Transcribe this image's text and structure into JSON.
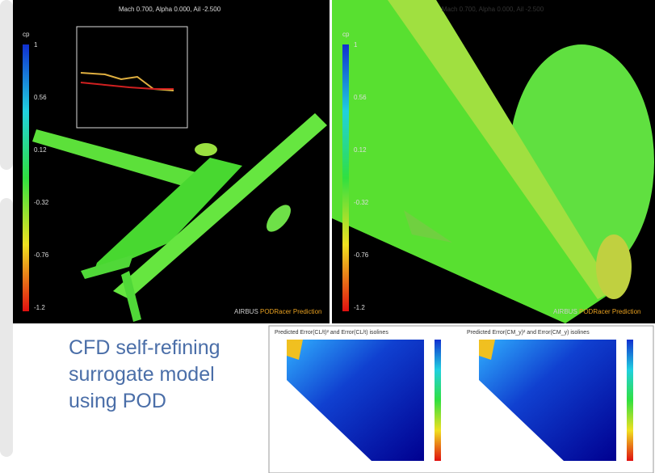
{
  "panels": [
    {
      "title": "Mach 0.700, Alpha 0.000, Ail -2.500",
      "colorbar": {
        "label": "cp",
        "ticks": [
          "1",
          "0.56",
          "0.12",
          "-0.32",
          "-0.76",
          "-1.2"
        ]
      },
      "footer": {
        "brand": "AIRBUS",
        "product": "PODRacer Prediction"
      }
    },
    {
      "title": "Mach 0.700, Alpha 0.000, Ail -2.500",
      "colorbar": {
        "label": "cp",
        "ticks": [
          "1",
          "0.56",
          "0.12",
          "-0.32",
          "-0.76",
          "-1.2"
        ]
      },
      "footer": {
        "brand": "AIRBUS",
        "product": "PODRacer Prediction"
      }
    }
  ],
  "caption": "CFD self-refining surrogate model using POD",
  "heatmaps": [
    {
      "title": "Predicted Error(CL/t)² and Error(CL/t) isolines"
    },
    {
      "title": "Predicted Error(CM_y)² and Error(CM_y) isolines"
    }
  ]
}
